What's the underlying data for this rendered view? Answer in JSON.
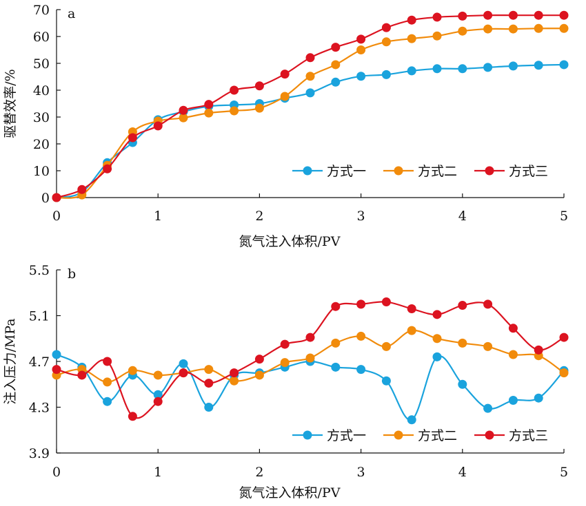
{
  "chart_data": [
    {
      "type": "line",
      "panel_label": "a",
      "xlabel": "氮气注入体积/PV",
      "ylabel": "驱替效率/%",
      "xlim": [
        0,
        5
      ],
      "ylim": [
        0,
        70
      ],
      "xticks": [
        "0",
        "1",
        "2",
        "3",
        "4",
        "5"
      ],
      "yticks": [
        "0",
        "10",
        "20",
        "30",
        "40",
        "50",
        "60",
        "70"
      ],
      "grid": false,
      "legend_position": "bottom-right",
      "x": [
        0,
        0.25,
        0.5,
        0.75,
        1,
        1.25,
        1.5,
        1.75,
        2,
        2.25,
        2.5,
        2.75,
        3,
        3.25,
        3.5,
        3.75,
        4,
        4.25,
        4.5,
        4.75,
        5
      ],
      "series": [
        {
          "name": "方式一",
          "color": "#1aa3dd",
          "values": [
            0,
            2,
            13,
            20.5,
            29,
            32,
            34,
            34.5,
            35,
            37,
            39,
            43,
            45.2,
            45.8,
            47.2,
            48,
            48,
            48.5,
            49,
            49.3,
            49.5
          ]
        },
        {
          "name": "方式二",
          "color": "#f18b0b",
          "values": [
            0,
            1,
            12,
            24.5,
            28.5,
            29.7,
            31.5,
            32.3,
            33.3,
            37.7,
            45.2,
            49.5,
            55,
            58,
            59.2,
            60.2,
            62,
            62.8,
            62.8,
            63,
            63
          ]
        },
        {
          "name": "方式三",
          "color": "#dc1320",
          "values": [
            0,
            3,
            10.7,
            22.3,
            26.7,
            32.5,
            34.7,
            40,
            41.6,
            46,
            52.1,
            56,
            59,
            63.3,
            66.1,
            67.2,
            67.6,
            67.9,
            67.9,
            67.9,
            67.9
          ]
        }
      ]
    },
    {
      "type": "line",
      "panel_label": "b",
      "xlabel": "氮气注入体积/PV",
      "ylabel": "注入压力/MPa",
      "xlim": [
        0,
        5
      ],
      "ylim": [
        3.9,
        5.5
      ],
      "xticks": [
        "0",
        "1",
        "2",
        "3",
        "4",
        "5"
      ],
      "yticks": [
        "3.9",
        "4.3",
        "4.7",
        "5.1",
        "5.5"
      ],
      "grid": false,
      "legend_position": "bottom-right",
      "x": [
        0,
        0.25,
        0.5,
        0.75,
        1,
        1.25,
        1.5,
        1.75,
        2,
        2.25,
        2.5,
        2.75,
        3,
        3.25,
        3.5,
        3.75,
        4,
        4.25,
        4.5,
        4.75,
        5
      ],
      "series": [
        {
          "name": "方式一",
          "color": "#1aa3dd",
          "values": [
            4.76,
            4.65,
            4.35,
            4.58,
            4.41,
            4.68,
            4.3,
            4.58,
            4.6,
            4.65,
            4.7,
            4.65,
            4.63,
            4.53,
            4.19,
            4.74,
            4.5,
            4.29,
            4.36,
            4.38,
            4.62
          ]
        },
        {
          "name": "方式二",
          "color": "#f18b0b",
          "values": [
            4.58,
            4.63,
            4.52,
            4.62,
            4.58,
            4.6,
            4.63,
            4.53,
            4.58,
            4.69,
            4.73,
            4.86,
            4.92,
            4.83,
            4.97,
            4.9,
            4.86,
            4.83,
            4.76,
            4.75,
            4.6
          ]
        },
        {
          "name": "方式三",
          "color": "#dc1320",
          "values": [
            4.63,
            4.58,
            4.7,
            4.22,
            4.35,
            4.6,
            4.51,
            4.6,
            4.72,
            4.85,
            4.91,
            5.18,
            5.2,
            5.22,
            5.16,
            5.11,
            5.19,
            5.2,
            4.99,
            4.8,
            4.91
          ]
        }
      ]
    }
  ]
}
